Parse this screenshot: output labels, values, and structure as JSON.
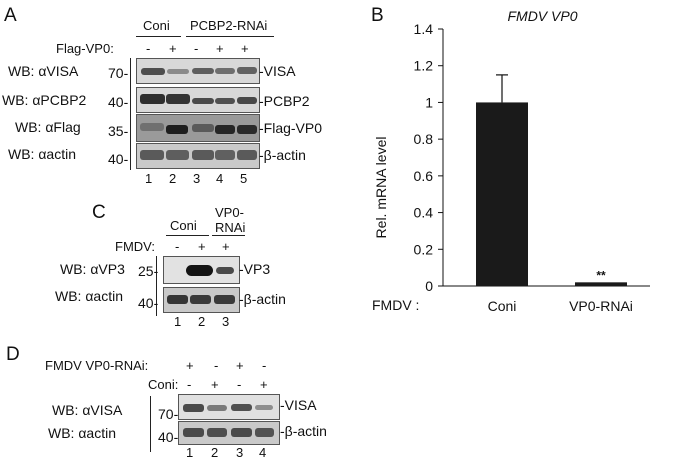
{
  "panelA": {
    "letter": "A",
    "group_coni": "Coni",
    "group_rnai": "PCBP2-RNAi",
    "treatment_label": "Flag-VP0:",
    "signs": [
      "-",
      "+",
      "-",
      "+",
      "+"
    ],
    "wb_rows": [
      {
        "antibody": "WB: αVISA",
        "mw": "70-",
        "target": "-VISA"
      },
      {
        "antibody": "WB: αPCBP2",
        "mw": "40-",
        "target": "-PCBP2"
      },
      {
        "antibody": "WB: αFlag",
        "mw": "35-",
        "target": "-Flag-VP0"
      },
      {
        "antibody": "WB: αactin",
        "mw": "40-",
        "target": "-β-actin"
      }
    ],
    "lanes": [
      "1",
      "2",
      "3",
      "4",
      "5"
    ]
  },
  "panelB": {
    "letter": "B",
    "row_label": "FMDV :",
    "significance": "**",
    "chart_data": {
      "type": "bar",
      "title": "FMDV VP0",
      "ylabel": "Rel. mRNA level",
      "categories": [
        "Coni",
        "VP0-RNAi"
      ],
      "values": [
        1.0,
        0.02
      ],
      "errors": [
        0.15,
        0.0
      ],
      "ylim": [
        0,
        1.4
      ],
      "yticks": [
        "0",
        "0.2",
        "0.4",
        "0.6",
        "0.8",
        "1",
        "1.2",
        "1.4"
      ],
      "bar_color": "#1a1a1a"
    }
  },
  "panelC": {
    "letter": "C",
    "group_coni": "Coni",
    "group_rnai_line1": "VP0-",
    "group_rnai_line2": "RNAi",
    "treatment_label": "FMDV:",
    "signs": [
      "-",
      "+",
      "+"
    ],
    "wb_rows": [
      {
        "antibody": "WB: αVP3",
        "mw": "25-",
        "target": "-VP3"
      },
      {
        "antibody": "WB: αactin",
        "mw": "40-",
        "target": "-β-actin"
      }
    ],
    "lanes": [
      "1",
      "2",
      "3"
    ]
  },
  "panelD": {
    "letter": "D",
    "row1_label": "FMDV VP0-RNAi:",
    "row1_signs": [
      "+",
      "-",
      "+",
      "-"
    ],
    "row2_label": "Coni:",
    "row2_signs": [
      "-",
      "+",
      "-",
      "+"
    ],
    "wb_rows": [
      {
        "antibody": "WB: αVISA",
        "mw": "70-",
        "target": "-VISA"
      },
      {
        "antibody": "WB: αactin",
        "mw": "40-",
        "target": "-β-actin"
      }
    ],
    "lanes": [
      "1",
      "2",
      "3",
      "4"
    ]
  }
}
